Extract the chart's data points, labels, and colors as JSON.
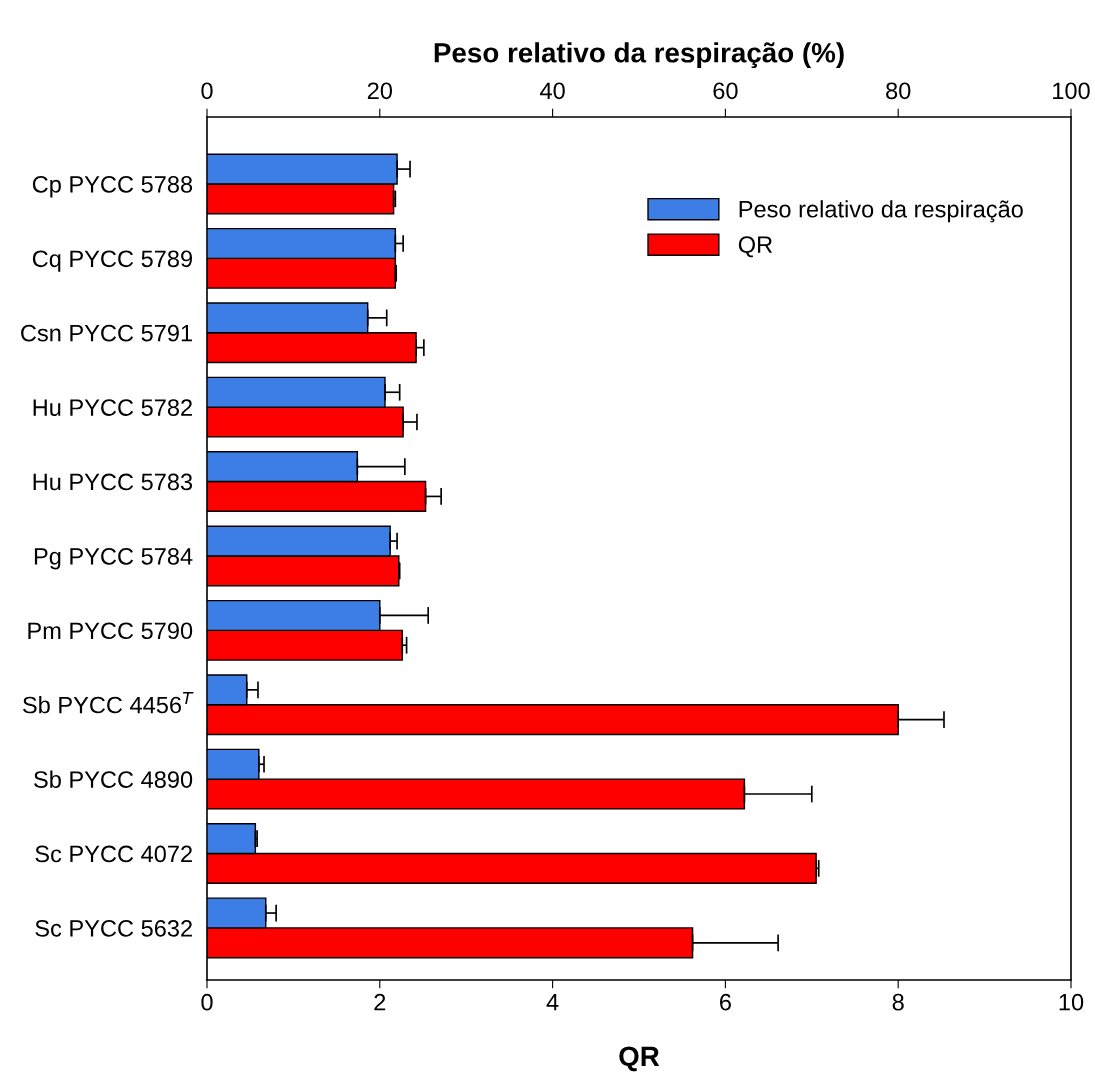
{
  "chart_data": {
    "type": "bar",
    "orientation": "horizontal",
    "categories": [
      "Cp PYCC 5788",
      "Cq PYCC 5789",
      "Csn PYCC 5791",
      "Hu PYCC 5782",
      "Hu PYCC 5783",
      "Pg PYCC 5784",
      "Pm PYCC 5790",
      "Sb PYCC 4456$^{T}$",
      "Sb PYCC 4890",
      "Sc PYCC 4072",
      "Sc PYCC 5632"
    ],
    "series": [
      {
        "name": "Peso relativo da respiração",
        "color": "#3d7ee6",
        "axis": "x2",
        "values": [
          22.0,
          21.8,
          18.6,
          20.6,
          17.4,
          21.2,
          20.0,
          4.6,
          6.0,
          5.6,
          6.8
        ],
        "errors": [
          [
            22.0,
            23.5
          ],
          [
            21.8,
            22.7
          ],
          [
            18.6,
            20.8
          ],
          [
            20.6,
            22.3
          ],
          [
            17.4,
            22.9
          ],
          [
            21.2,
            22.0
          ],
          [
            20.0,
            25.6
          ],
          [
            4.6,
            5.9
          ],
          [
            6.0,
            6.6
          ],
          [
            5.6,
            5.8
          ],
          [
            6.8,
            8.0
          ]
        ]
      },
      {
        "name": "QR",
        "color": "#ff0000",
        "values": [
          2.16,
          2.18,
          2.42,
          2.27,
          2.53,
          2.22,
          2.26,
          8.0,
          6.22,
          7.05,
          5.62
        ],
        "errors": [
          [
            2.16,
            2.18
          ],
          [
            2.18,
            2.19
          ],
          [
            2.42,
            2.51
          ],
          [
            2.27,
            2.43
          ],
          [
            2.53,
            2.71
          ],
          [
            2.22,
            2.23
          ],
          [
            2.26,
            2.31
          ],
          [
            8.0,
            8.53
          ],
          [
            6.22,
            7.0
          ],
          [
            7.05,
            7.08
          ],
          [
            5.62,
            6.61
          ]
        ]
      }
    ],
    "xlabel": "QR",
    "xlim": [
      0,
      10
    ],
    "xticks": [
      0,
      2,
      4,
      6,
      8,
      10
    ],
    "x2label": "Peso relativo da respiração (%)",
    "x2lim": [
      0,
      100
    ],
    "x2ticks": [
      0,
      20,
      40,
      60,
      80,
      100
    ],
    "legend": "top right",
    "grid": false
  }
}
